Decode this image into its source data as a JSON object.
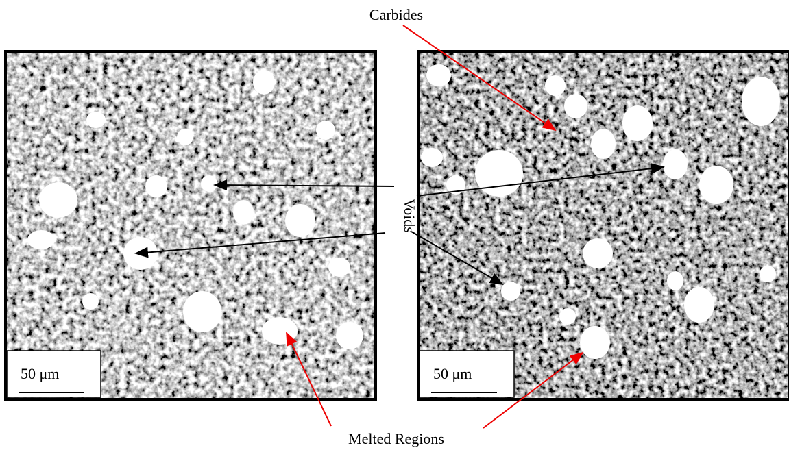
{
  "labels": {
    "carbides": "Carbides",
    "voids": "Voids",
    "melted_regions": "Melted Regions"
  },
  "panels": [
    {
      "scale_bar": "50 μm"
    },
    {
      "scale_bar": "50 μm"
    }
  ]
}
